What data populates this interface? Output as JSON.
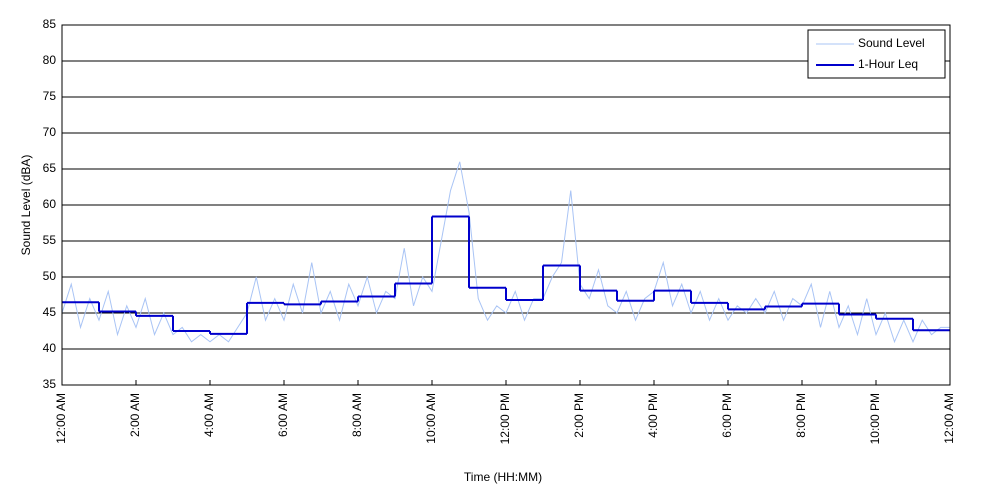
{
  "chart_data": {
    "type": "line",
    "xlabel": "Time (HH:MM)",
    "ylabel": "Sound Level (dBA)",
    "xlim": [
      0,
      24
    ],
    "ylim": [
      35,
      85
    ],
    "xticks": [
      {
        "value": 0,
        "label": "12:00 AM"
      },
      {
        "value": 2,
        "label": "2:00 AM"
      },
      {
        "value": 4,
        "label": "4:00 AM"
      },
      {
        "value": 6,
        "label": "6:00 AM"
      },
      {
        "value": 8,
        "label": "8:00 AM"
      },
      {
        "value": 10,
        "label": "10:00 AM"
      },
      {
        "value": 12,
        "label": "12:00 PM"
      },
      {
        "value": 14,
        "label": "2:00 PM"
      },
      {
        "value": 16,
        "label": "4:00 PM"
      },
      {
        "value": 18,
        "label": "6:00 PM"
      },
      {
        "value": 20,
        "label": "8:00 PM"
      },
      {
        "value": 22,
        "label": "10:00 PM"
      },
      {
        "value": 24,
        "label": "12:00 AM"
      }
    ],
    "yticks": [
      35,
      40,
      45,
      50,
      55,
      60,
      65,
      70,
      75,
      80,
      85
    ],
    "grid": true,
    "legend": "upper right",
    "series": [
      {
        "name": "Sound Level",
        "color": "#a9c4f5",
        "drawstyle": "default",
        "x": [
          0,
          0.25,
          0.5,
          0.75,
          1,
          1.25,
          1.5,
          1.75,
          2,
          2.25,
          2.5,
          2.75,
          3,
          3.25,
          3.5,
          3.75,
          4,
          4.25,
          4.5,
          4.75,
          5,
          5.25,
          5.5,
          5.75,
          6,
          6.25,
          6.5,
          6.75,
          7,
          7.25,
          7.5,
          7.75,
          8,
          8.25,
          8.5,
          8.75,
          9,
          9.25,
          9.5,
          9.75,
          10,
          10.25,
          10.5,
          10.75,
          11,
          11.25,
          11.5,
          11.75,
          12,
          12.25,
          12.5,
          12.75,
          13,
          13.25,
          13.5,
          13.75,
          14,
          14.25,
          14.5,
          14.75,
          15,
          15.25,
          15.5,
          15.75,
          16,
          16.25,
          16.5,
          16.75,
          17,
          17.25,
          17.5,
          17.75,
          18,
          18.25,
          18.5,
          18.75,
          19,
          19.25,
          19.5,
          19.75,
          20,
          20.25,
          20.5,
          20.75,
          21,
          21.25,
          21.5,
          21.75,
          22,
          22.25,
          22.5,
          22.75,
          23,
          23.25,
          23.5,
          23.75,
          24
        ],
        "values": [
          45,
          49,
          43,
          47,
          44,
          48,
          42,
          46,
          43,
          47,
          42,
          45,
          42,
          43,
          41,
          42,
          41,
          42,
          41,
          43,
          45,
          50,
          44,
          47,
          44,
          49,
          45,
          52,
          45,
          48,
          44,
          49,
          46,
          50,
          45,
          48,
          47,
          54,
          46,
          50,
          48,
          55,
          62,
          66,
          59,
          47,
          44,
          46,
          45,
          48,
          44,
          47,
          47,
          50,
          52,
          62,
          49,
          47,
          51,
          46,
          45,
          48,
          44,
          47,
          48,
          52,
          46,
          49,
          45,
          48,
          44,
          47,
          44,
          46,
          45,
          47,
          45,
          48,
          44,
          47,
          46,
          49,
          43,
          48,
          43,
          46,
          42,
          47,
          42,
          45,
          41,
          44,
          41,
          44,
          42,
          43,
          43
        ]
      },
      {
        "name": "1-Hour Leq",
        "color": "#0000cc",
        "drawstyle": "steps-post",
        "x": [
          0,
          1,
          2,
          3,
          4,
          5,
          6,
          7,
          8,
          9,
          10,
          11,
          12,
          13,
          14,
          15,
          16,
          17,
          18,
          19,
          20,
          21,
          22,
          23
        ],
        "values": [
          46.5,
          45.2,
          44.6,
          42.5,
          42.1,
          46.4,
          46.2,
          46.6,
          47.3,
          49.1,
          58.4,
          48.5,
          46.8,
          51.6,
          48.1,
          46.7,
          48.1,
          46.4,
          45.5,
          45.9,
          46.3,
          44.8,
          44.2,
          42.6
        ]
      }
    ]
  }
}
